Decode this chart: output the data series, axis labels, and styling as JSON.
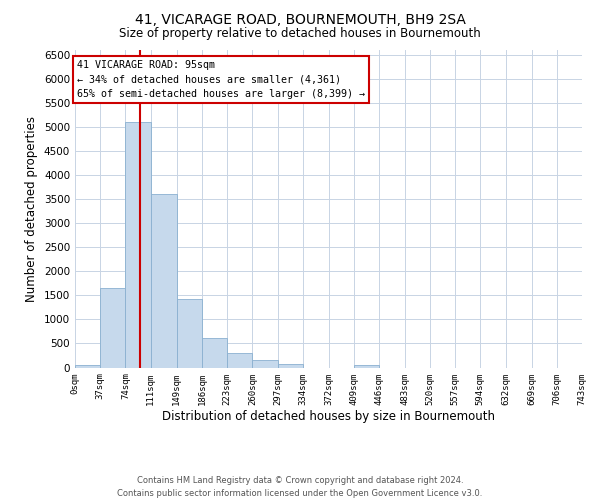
{
  "title": "41, VICARAGE ROAD, BOURNEMOUTH, BH9 2SA",
  "subtitle": "Size of property relative to detached houses in Bournemouth",
  "xlabel": "Distribution of detached houses by size in Bournemouth",
  "ylabel": "Number of detached properties",
  "bar_color": "#c6d9ec",
  "bar_edge_color": "#8ab0d0",
  "background_color": "#ffffff",
  "grid_color": "#c8d4e4",
  "annotation_line_color": "#cc0000",
  "annotation_box_edge_color": "#cc0000",
  "bin_edges": [
    0,
    37,
    74,
    111,
    149,
    186,
    223,
    260,
    297,
    334,
    372,
    409,
    446,
    483,
    520,
    557,
    594,
    632,
    669,
    706,
    743
  ],
  "bin_labels": [
    "0sqm",
    "37sqm",
    "74sqm",
    "111sqm",
    "149sqm",
    "186sqm",
    "223sqm",
    "260sqm",
    "297sqm",
    "334sqm",
    "372sqm",
    "409sqm",
    "446sqm",
    "483sqm",
    "520sqm",
    "557sqm",
    "594sqm",
    "632sqm",
    "669sqm",
    "706sqm",
    "743sqm"
  ],
  "bar_heights": [
    50,
    1650,
    5100,
    3600,
    1420,
    610,
    300,
    155,
    80,
    0,
    0,
    50,
    0,
    0,
    0,
    0,
    0,
    0,
    0,
    0
  ],
  "ylim": [
    0,
    6600
  ],
  "yticks": [
    0,
    500,
    1000,
    1500,
    2000,
    2500,
    3000,
    3500,
    4000,
    4500,
    5000,
    5500,
    6000,
    6500
  ],
  "property_line_x": 95,
  "annotation_title": "41 VICARAGE ROAD: 95sqm",
  "annotation_line1": "← 34% of detached houses are smaller (4,361)",
  "annotation_line2": "65% of semi-detached houses are larger (8,399) →",
  "footer_line1": "Contains HM Land Registry data © Crown copyright and database right 2024.",
  "footer_line2": "Contains public sector information licensed under the Open Government Licence v3.0."
}
